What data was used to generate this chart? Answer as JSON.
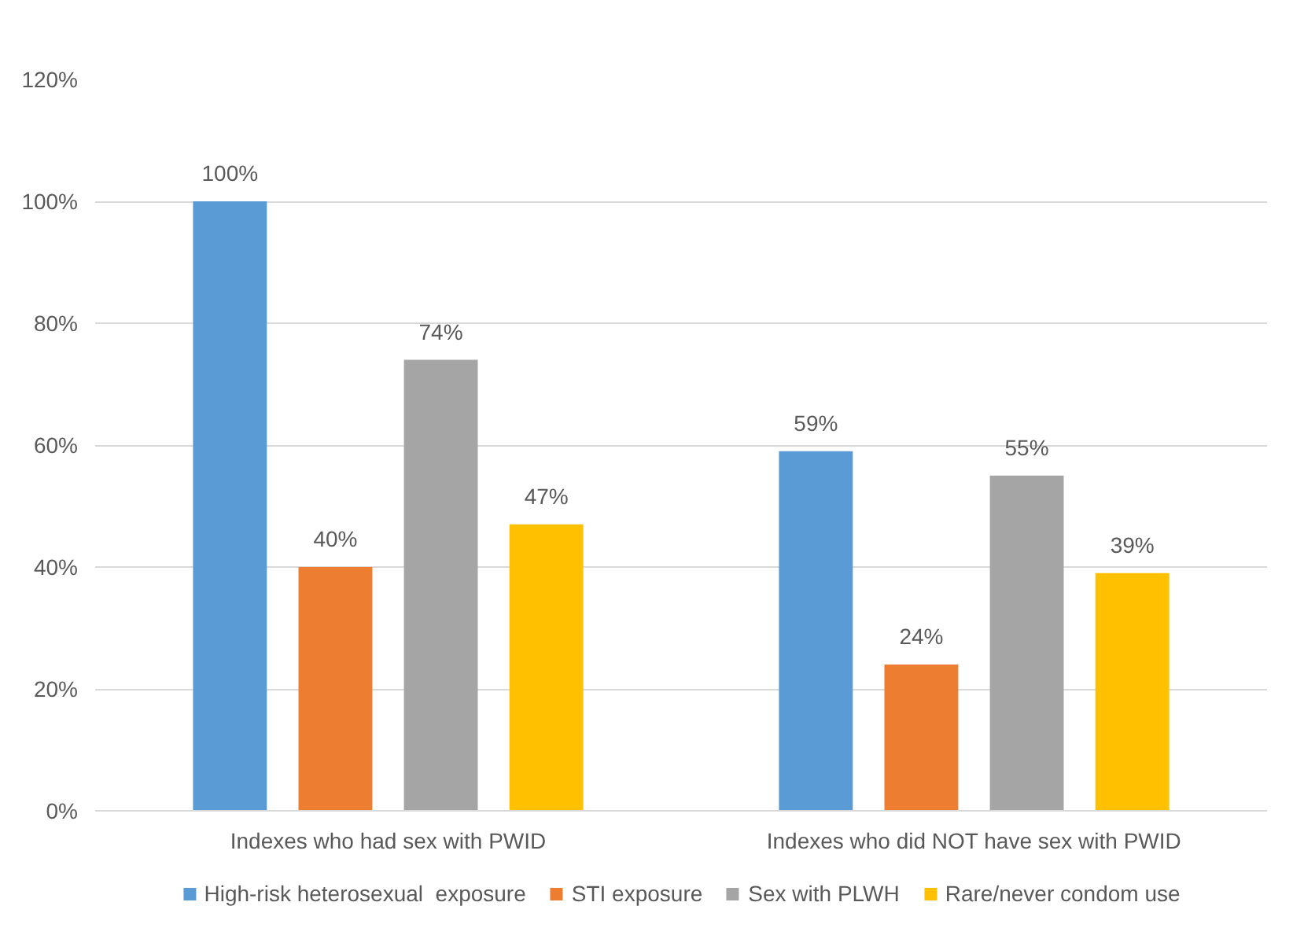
{
  "chart_data": {
    "type": "bar",
    "categories": [
      "Indexes who had sex with PWID",
      "Indexes who did NOT have sex with PWID"
    ],
    "series": [
      {
        "name": "High-risk heterosexual  exposure",
        "color": "#5b9bd5",
        "values": [
          100,
          59
        ],
        "value_labels": [
          "100%",
          "59%"
        ]
      },
      {
        "name": "STI exposure",
        "color": "#ed7d31",
        "values": [
          40,
          24
        ],
        "value_labels": [
          "40%",
          "24%"
        ]
      },
      {
        "name": "Sex with PLWH",
        "color": "#a5a5a5",
        "values": [
          74,
          55
        ],
        "value_labels": [
          "74%",
          "55%"
        ]
      },
      {
        "name": "Rare/never condom use",
        "color": "#ffc000",
        "values": [
          47,
          39
        ],
        "value_labels": [
          "47%",
          "39%"
        ]
      }
    ],
    "ylim": [
      0,
      120
    ],
    "yticks": [
      {
        "value": 0,
        "label": "0%"
      },
      {
        "value": 20,
        "label": "20%"
      },
      {
        "value": 40,
        "label": "40%"
      },
      {
        "value": 60,
        "label": "60%"
      },
      {
        "value": 80,
        "label": "80%"
      },
      {
        "value": 100,
        "label": "100%"
      },
      {
        "value": 120,
        "label": "120%"
      }
    ],
    "grid": "y",
    "legend": "bottom"
  }
}
